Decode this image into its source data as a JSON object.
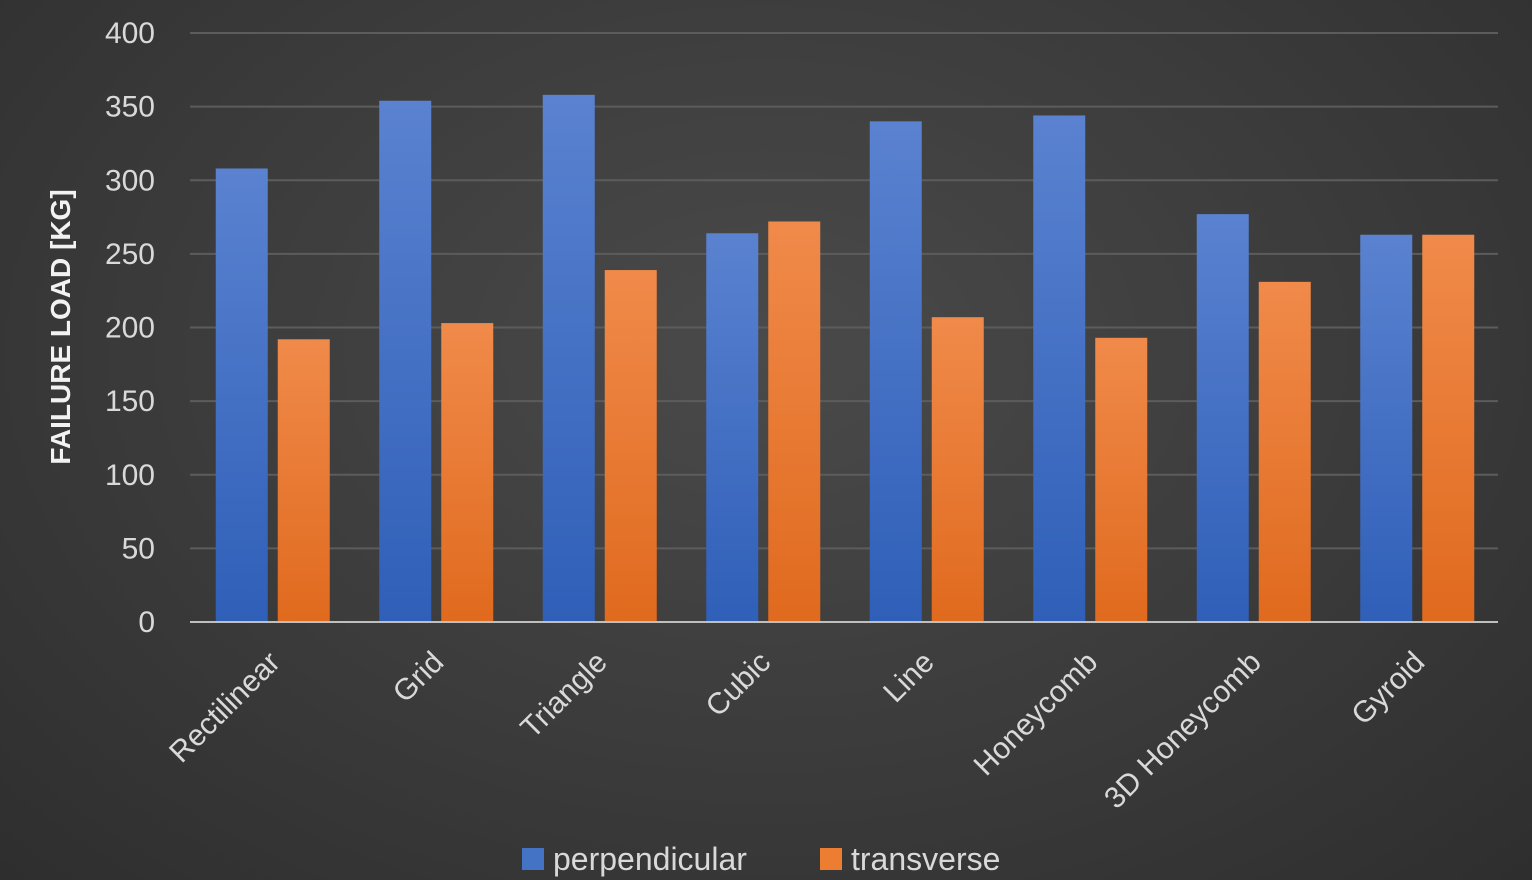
{
  "chart_data": {
    "type": "bar",
    "title": "",
    "xlabel": "",
    "ylabel": "FAILURE LOAD [KG]",
    "ylim": [
      0,
      400
    ],
    "yticks": [
      0,
      50,
      100,
      150,
      200,
      250,
      300,
      350,
      400
    ],
    "grid": true,
    "legend_position": "bottom",
    "categories": [
      "Rectilinear",
      "Grid",
      "Triangle",
      "Cubic",
      "Line",
      "Honeycomb",
      "3D Honeycomb",
      "Gyroid"
    ],
    "series": [
      {
        "name": "perpendicular",
        "color": "#4472c4",
        "values": [
          308,
          354,
          358,
          264,
          340,
          344,
          277,
          263
        ]
      },
      {
        "name": "transverse",
        "color": "#ed7d31",
        "values": [
          192,
          203,
          239,
          272,
          207,
          193,
          231,
          263
        ]
      }
    ]
  }
}
